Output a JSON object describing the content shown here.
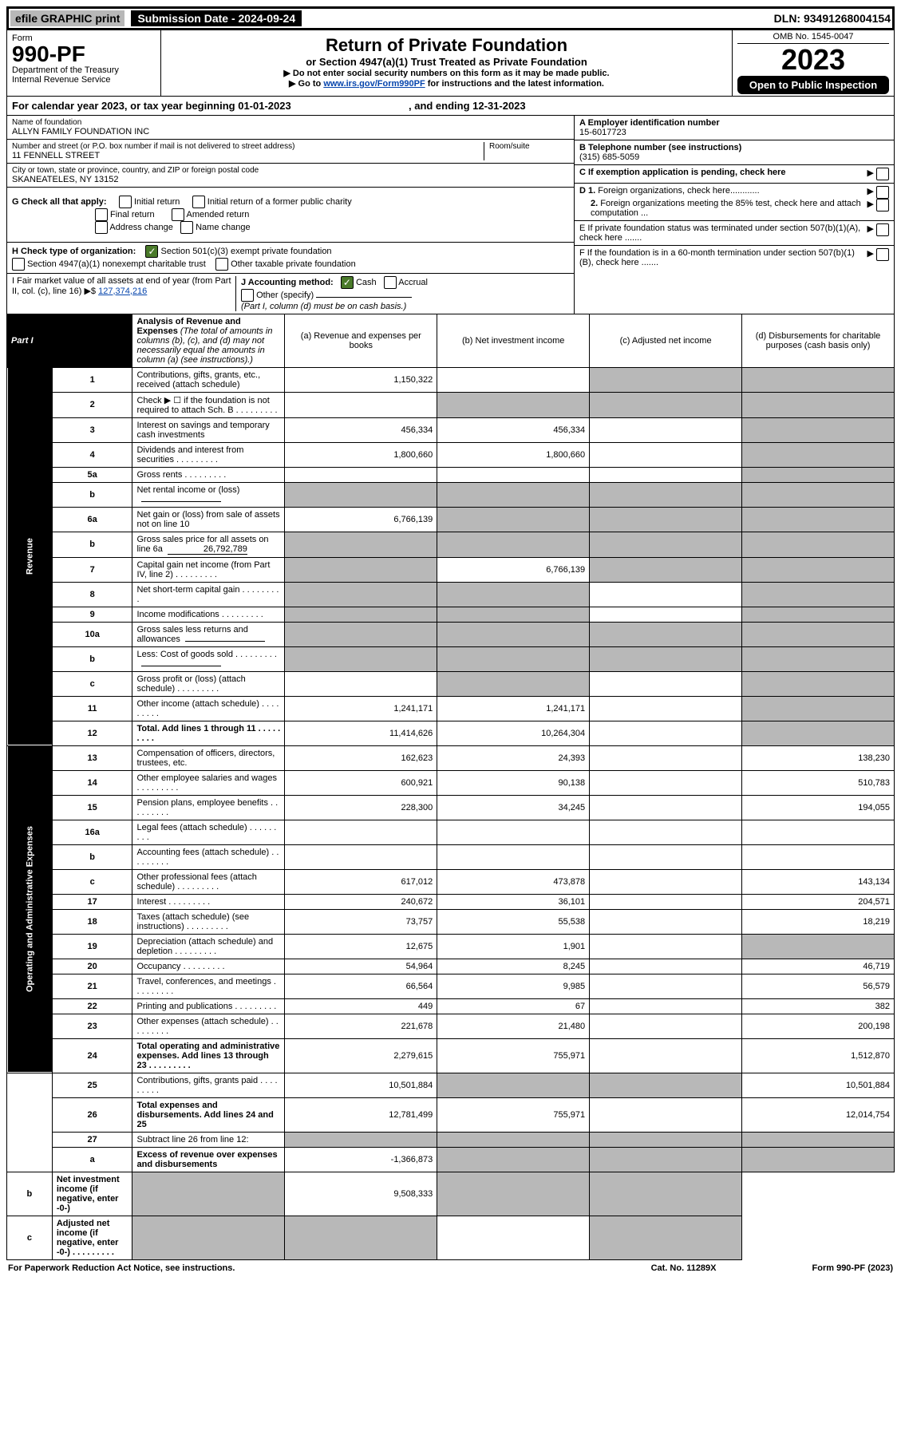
{
  "top": {
    "efile": "efile GRAPHIC print",
    "submission": "Submission Date - 2024-09-24",
    "dln": "DLN: 93491268004154"
  },
  "header": {
    "form_label": "Form",
    "form_num": "990-PF",
    "dept1": "Department of the Treasury",
    "dept2": "Internal Revenue Service",
    "title": "Return of Private Foundation",
    "subtitle": "or Section 4947(a)(1) Trust Treated as Private Foundation",
    "note1": "▶ Do not enter social security numbers on this form as it may be made public.",
    "note2_a": "▶ Go to ",
    "note2_link": "www.irs.gov/Form990PF",
    "note2_b": " for instructions and the latest information.",
    "omb": "OMB No. 1545-0047",
    "year": "2023",
    "inspect": "Open to Public Inspection"
  },
  "cal": {
    "a": "For calendar year 2023, or tax year beginning 01-01-2023",
    "b": ", and ending 12-31-2023"
  },
  "left": {
    "name_lbl": "Name of foundation",
    "name": "ALLYN FAMILY FOUNDATION INC",
    "addr_lbl": "Number and street (or P.O. box number if mail is not delivered to street address)",
    "room_lbl": "Room/suite",
    "addr": "11 FENNELL STREET",
    "city_lbl": "City or town, state or province, country, and ZIP or foreign postal code",
    "city": "SKANEATELES, NY  13152",
    "g_lbl": "G Check all that apply:",
    "g_opts": [
      "Initial return",
      "Final return",
      "Address change",
      "Initial return of a former public charity",
      "Amended return",
      "Name change"
    ],
    "h_lbl": "H Check type of organization:",
    "h_1": "Section 501(c)(3) exempt private foundation",
    "h_2": "Section 4947(a)(1) nonexempt charitable trust",
    "h_3": "Other taxable private foundation",
    "i_lbl": "I Fair market value of all assets at end of year (from Part II, col. (c), line 16) ▶$",
    "i_val": "127,374,216",
    "j_lbl": "J Accounting method:",
    "j_cash": "Cash",
    "j_accrual": "Accrual",
    "j_other": "Other (specify)",
    "j_note": "(Part I, column (d) must be on cash basis.)"
  },
  "right": {
    "a_lbl": "A Employer identification number",
    "a_val": "15-6017723",
    "b_lbl": "B Telephone number (see instructions)",
    "b_val": "(315) 685-5059",
    "c_lbl": "C If exemption application is pending, check here",
    "d1": "D 1. Foreign organizations, check here............",
    "d2": "2. Foreign organizations meeting the 85% test, check here and attach computation ...",
    "e": "E  If private foundation status was terminated under section 507(b)(1)(A), check here .......",
    "f": "F  If the foundation is in a 60-month termination under section 507(b)(1)(B), check here .......",
    "arrow": "▶"
  },
  "part1": {
    "label": "Part I",
    "title": "Analysis of Revenue and Expenses",
    "note": "(The total of amounts in columns (b), (c), and (d) may not necessarily equal the amounts in column (a) (see instructions).)",
    "col_a": "(a) Revenue and expenses per books",
    "col_b": "(b) Net investment income",
    "col_c": "(c) Adjusted net income",
    "col_d": "(d) Disbursements for charitable purposes (cash basis only)"
  },
  "v_rev": "Revenue",
  "v_exp": "Operating and Administrative Expenses",
  "rows": [
    {
      "n": "1",
      "d": "Contributions, gifts, grants, etc., received (attach schedule)",
      "a": "1,150,322",
      "b": "",
      "c": "s",
      "dd": "s"
    },
    {
      "n": "2",
      "d": "Check ▶ ☐ if the foundation is not required to attach Sch. B",
      "dots": 1,
      "a": "",
      "b": "s",
      "c": "s",
      "dd": "s"
    },
    {
      "n": "3",
      "d": "Interest on savings and temporary cash investments",
      "a": "456,334",
      "b": "456,334",
      "c": "",
      "dd": "s"
    },
    {
      "n": "4",
      "d": "Dividends and interest from securities",
      "dots": 1,
      "a": "1,800,660",
      "b": "1,800,660",
      "c": "",
      "dd": "s"
    },
    {
      "n": "5a",
      "d": "Gross rents",
      "dots": 1,
      "a": "",
      "b": "",
      "c": "",
      "dd": "s"
    },
    {
      "n": "b",
      "d": "Net rental income or (loss)",
      "under": 1,
      "a": "s",
      "b": "s",
      "c": "s",
      "dd": "s"
    },
    {
      "n": "6a",
      "d": "Net gain or (loss) from sale of assets not on line 10",
      "a": "6,766,139",
      "b": "s",
      "c": "s",
      "dd": "s"
    },
    {
      "n": "b",
      "d": "Gross sales price for all assets on line 6a",
      "under": 1,
      "uval": "26,792,789",
      "a": "s",
      "b": "s",
      "c": "s",
      "dd": "s"
    },
    {
      "n": "7",
      "d": "Capital gain net income (from Part IV, line 2)",
      "dots": 1,
      "a": "s",
      "b": "6,766,139",
      "c": "s",
      "dd": "s"
    },
    {
      "n": "8",
      "d": "Net short-term capital gain",
      "dots": 1,
      "a": "s",
      "b": "s",
      "c": "",
      "dd": "s"
    },
    {
      "n": "9",
      "d": "Income modifications",
      "dots": 1,
      "a": "s",
      "b": "s",
      "c": "",
      "dd": "s"
    },
    {
      "n": "10a",
      "d": "Gross sales less returns and allowances",
      "under": 1,
      "a": "s",
      "b": "s",
      "c": "s",
      "dd": "s"
    },
    {
      "n": "b",
      "d": "Less: Cost of goods sold",
      "dots": 1,
      "under": 1,
      "a": "s",
      "b": "s",
      "c": "s",
      "dd": "s"
    },
    {
      "n": "c",
      "d": "Gross profit or (loss) (attach schedule)",
      "dots": 1,
      "a": "",
      "b": "s",
      "c": "",
      "dd": "s"
    },
    {
      "n": "11",
      "d": "Other income (attach schedule)",
      "dots": 1,
      "a": "1,241,171",
      "b": "1,241,171",
      "c": "",
      "dd": "s"
    },
    {
      "n": "12",
      "d": "Total. Add lines 1 through 11",
      "dots": 1,
      "bold": 1,
      "a": "11,414,626",
      "b": "10,264,304",
      "c": "",
      "dd": "s"
    },
    {
      "n": "13",
      "d": "Compensation of officers, directors, trustees, etc.",
      "a": "162,623",
      "b": "24,393",
      "c": "",
      "dd": "138,230"
    },
    {
      "n": "14",
      "d": "Other employee salaries and wages",
      "dots": 1,
      "a": "600,921",
      "b": "90,138",
      "c": "",
      "dd": "510,783"
    },
    {
      "n": "15",
      "d": "Pension plans, employee benefits",
      "dots": 1,
      "a": "228,300",
      "b": "34,245",
      "c": "",
      "dd": "194,055"
    },
    {
      "n": "16a",
      "d": "Legal fees (attach schedule)",
      "dots": 1,
      "a": "",
      "b": "",
      "c": "",
      "dd": ""
    },
    {
      "n": "b",
      "d": "Accounting fees (attach schedule)",
      "dots": 1,
      "a": "",
      "b": "",
      "c": "",
      "dd": ""
    },
    {
      "n": "c",
      "d": "Other professional fees (attach schedule)",
      "dots": 1,
      "a": "617,012",
      "b": "473,878",
      "c": "",
      "dd": "143,134"
    },
    {
      "n": "17",
      "d": "Interest",
      "dots": 1,
      "a": "240,672",
      "b": "36,101",
      "c": "",
      "dd": "204,571"
    },
    {
      "n": "18",
      "d": "Taxes (attach schedule) (see instructions)",
      "dots": 1,
      "a": "73,757",
      "b": "55,538",
      "c": "",
      "dd": "18,219"
    },
    {
      "n": "19",
      "d": "Depreciation (attach schedule) and depletion",
      "dots": 1,
      "a": "12,675",
      "b": "1,901",
      "c": "",
      "dd": "s"
    },
    {
      "n": "20",
      "d": "Occupancy",
      "dots": 1,
      "a": "54,964",
      "b": "8,245",
      "c": "",
      "dd": "46,719"
    },
    {
      "n": "21",
      "d": "Travel, conferences, and meetings",
      "dots": 1,
      "a": "66,564",
      "b": "9,985",
      "c": "",
      "dd": "56,579"
    },
    {
      "n": "22",
      "d": "Printing and publications",
      "dots": 1,
      "a": "449",
      "b": "67",
      "c": "",
      "dd": "382"
    },
    {
      "n": "23",
      "d": "Other expenses (attach schedule)",
      "dots": 1,
      "a": "221,678",
      "b": "21,480",
      "c": "",
      "dd": "200,198"
    },
    {
      "n": "24",
      "d": "Total operating and administrative expenses. Add lines 13 through 23",
      "dots": 1,
      "bold": 1,
      "a": "2,279,615",
      "b": "755,971",
      "c": "",
      "dd": "1,512,870"
    },
    {
      "n": "25",
      "d": "Contributions, gifts, grants paid",
      "dots": 1,
      "a": "10,501,884",
      "b": "s",
      "c": "s",
      "dd": "10,501,884"
    },
    {
      "n": "26",
      "d": "Total expenses and disbursements. Add lines 24 and 25",
      "bold": 1,
      "a": "12,781,499",
      "b": "755,971",
      "c": "",
      "dd": "12,014,754"
    },
    {
      "n": "27",
      "d": "Subtract line 26 from line 12:",
      "a": "s",
      "b": "s",
      "c": "s",
      "dd": "s"
    },
    {
      "n": "a",
      "d": "Excess of revenue over expenses and disbursements",
      "bold": 1,
      "a": "-1,366,873",
      "b": "s",
      "c": "s",
      "dd": "s"
    },
    {
      "n": "b",
      "d": "Net investment income (if negative, enter -0-)",
      "bold": 1,
      "a": "s",
      "b": "9,508,333",
      "c": "s",
      "dd": "s"
    },
    {
      "n": "c",
      "d": "Adjusted net income (if negative, enter -0-)",
      "dots": 1,
      "bold": 1,
      "a": "s",
      "b": "s",
      "c": "",
      "dd": "s"
    }
  ],
  "footer": {
    "l": "For Paperwork Reduction Act Notice, see instructions.",
    "m": "Cat. No. 11289X",
    "r": "Form 990-PF (2023)"
  }
}
